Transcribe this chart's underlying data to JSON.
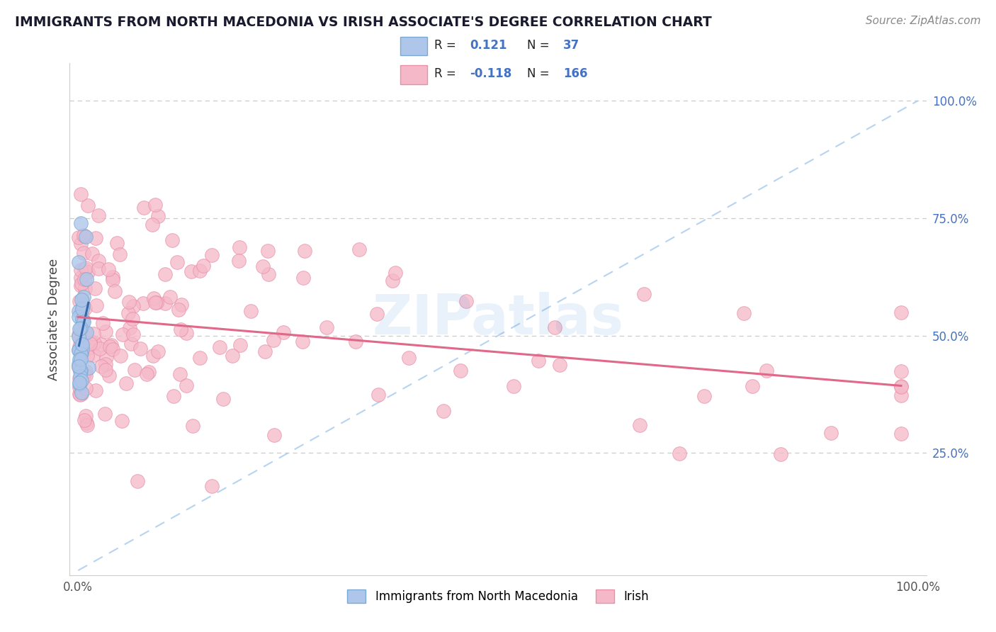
{
  "title": "IMMIGRANTS FROM NORTH MACEDONIA VS IRISH ASSOCIATE'S DEGREE CORRELATION CHART",
  "source": "Source: ZipAtlas.com",
  "ylabel": "Associate's Degree",
  "right_yticks": [
    "100.0%",
    "75.0%",
    "50.0%",
    "25.0%"
  ],
  "right_ytick_vals": [
    1.0,
    0.75,
    0.5,
    0.25
  ],
  "R_blue": 0.121,
  "N_blue": 37,
  "R_pink": -0.118,
  "N_pink": 166,
  "blue_color": "#aec6ea",
  "blue_edge_color": "#7aaad4",
  "blue_line_color": "#3468aa",
  "pink_color": "#f5b8c8",
  "pink_edge_color": "#e890a8",
  "pink_line_color": "#e06888",
  "legend_blue_label": "Immigrants from North Macedonia",
  "legend_pink_label": "Irish",
  "watermark": "ZIPatlas",
  "diag_color": "#aaccee",
  "grid_color": "#cccccc",
  "value_color": "#4472c4",
  "title_color": "#1a1a2e",
  "source_color": "#888888"
}
